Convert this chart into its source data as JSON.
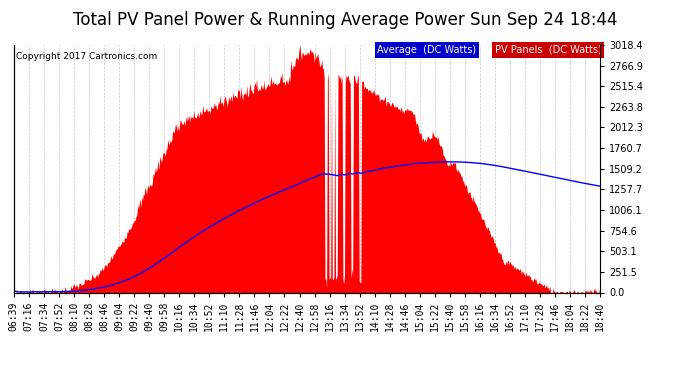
{
  "title": "Total PV Panel Power & Running Average Power Sun Sep 24 18:44",
  "copyright": "Copyright 2017 Cartronics.com",
  "ylabel_right_values": [
    3018.4,
    2766.9,
    2515.4,
    2263.8,
    2012.3,
    1760.7,
    1509.2,
    1257.7,
    1006.1,
    754.6,
    503.1,
    251.5,
    0.0
  ],
  "ymax": 3018.4,
  "ymin": 0.0,
  "bg_color": "#ffffff",
  "plot_bg_color": "#ffffff",
  "grid_color": "#c8c8c8",
  "pv_color": "#ff0000",
  "avg_color": "#0000ff",
  "legend_avg_bg": "#0000cc",
  "legend_pv_bg": "#cc0000",
  "title_fontsize": 12,
  "tick_fontsize": 7,
  "x_tick_labels": [
    "06:39",
    "07:16",
    "07:34",
    "07:52",
    "08:10",
    "08:28",
    "08:46",
    "09:04",
    "09:22",
    "09:40",
    "09:58",
    "10:16",
    "10:34",
    "10:52",
    "11:10",
    "11:28",
    "11:46",
    "12:04",
    "12:22",
    "12:40",
    "12:58",
    "13:16",
    "13:34",
    "13:52",
    "14:10",
    "14:28",
    "14:46",
    "15:04",
    "15:22",
    "15:40",
    "15:58",
    "16:16",
    "16:34",
    "16:52",
    "17:10",
    "17:28",
    "17:46",
    "18:04",
    "18:22",
    "18:40"
  ]
}
